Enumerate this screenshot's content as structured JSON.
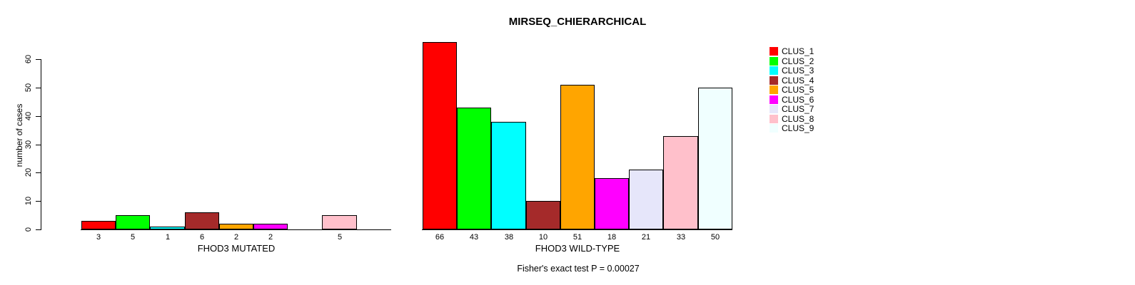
{
  "chart_data": {
    "type": "bar",
    "title": "MIRSEQ_CHIERARCHICAL",
    "ylabel": "number of cases",
    "ylim": [
      0,
      60
    ],
    "yticks": [
      0,
      10,
      20,
      30,
      40,
      50,
      60
    ],
    "grid": false,
    "legend_position": "right",
    "annotation": "Fisher's exact test P = 0.00027",
    "clusters": [
      {
        "name": "CLUS_1",
        "color": "#FF0000"
      },
      {
        "name": "CLUS_2",
        "color": "#00FF00"
      },
      {
        "name": "CLUS_3",
        "color": "#00FFFF"
      },
      {
        "name": "CLUS_4",
        "color": "#A52A2A"
      },
      {
        "name": "CLUS_5",
        "color": "#FFA500"
      },
      {
        "name": "CLUS_6",
        "color": "#FF00FF"
      },
      {
        "name": "CLUS_7",
        "color": "#E6E6FA"
      },
      {
        "name": "CLUS_8",
        "color": "#FFC0CB"
      },
      {
        "name": "CLUS_9",
        "color": "#F0FFFF"
      }
    ],
    "groups": [
      {
        "label": "FHOD3 MUTATED",
        "values": [
          3,
          5,
          1,
          6,
          2,
          2,
          0,
          5,
          0
        ]
      },
      {
        "label": "FHOD3 WILD-TYPE",
        "values": [
          66,
          43,
          38,
          10,
          51,
          18,
          21,
          33,
          50
        ]
      }
    ]
  }
}
